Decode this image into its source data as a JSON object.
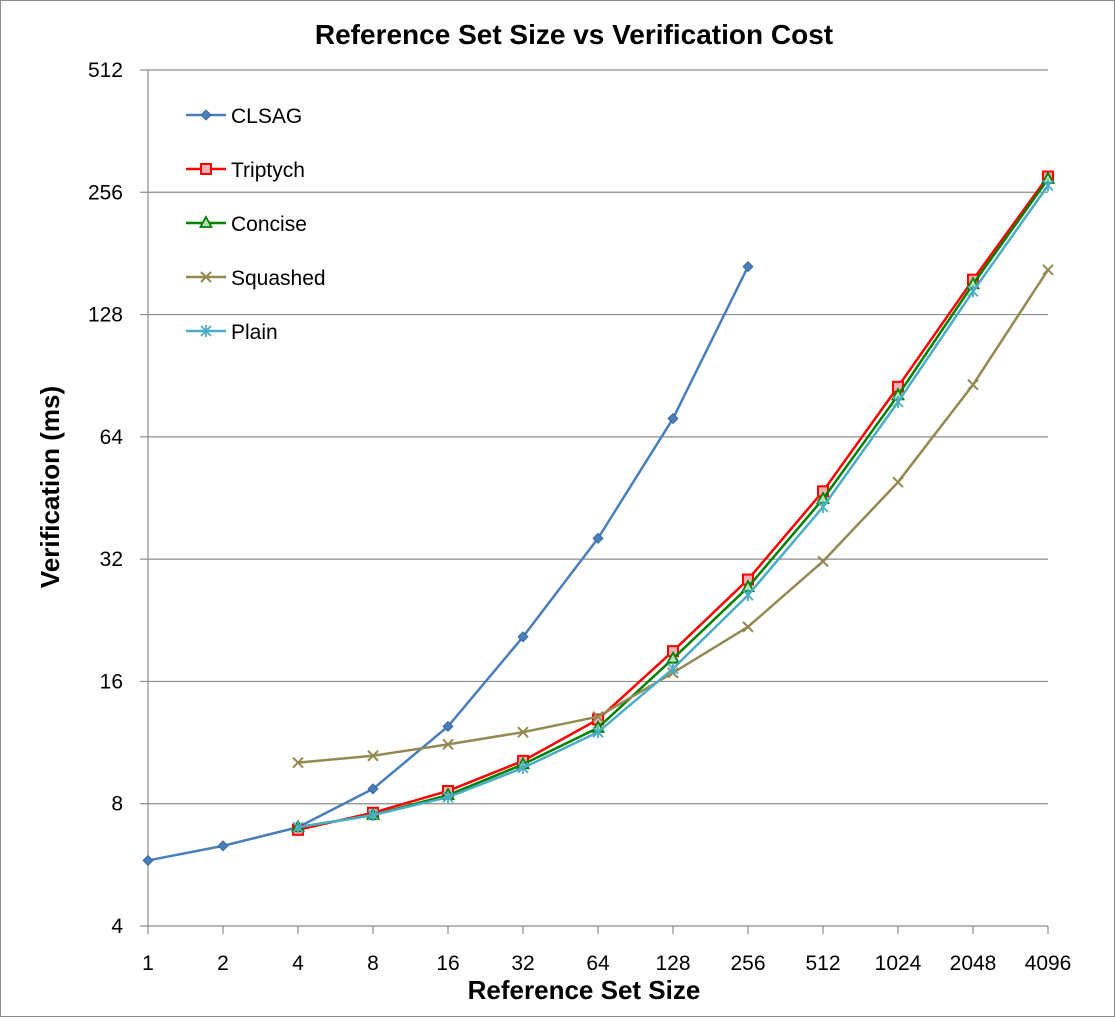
{
  "chart_data": {
    "type": "line",
    "title": "Reference Set Size vs Verification Cost",
    "xlabel": "Reference Set Size",
    "ylabel": "Verification (ms)",
    "x_scale": "log2",
    "y_scale": "log2",
    "categories": [
      "1",
      "2",
      "4",
      "8",
      "16",
      "32",
      "64",
      "128",
      "256",
      "512",
      "1024",
      "2048",
      "4096"
    ],
    "x": [
      1,
      2,
      4,
      8,
      16,
      32,
      64,
      128,
      256,
      512,
      1024,
      2048,
      4096
    ],
    "y_ticks": [
      "4",
      "8",
      "16",
      "32",
      "64",
      "128",
      "256",
      "512"
    ],
    "ylim": [
      4,
      512
    ],
    "grid": "horizontal major",
    "legend_position": "top-left",
    "series": [
      {
        "name": "CLSAG",
        "color": "#4a7ebb",
        "marker": "diamond",
        "values": [
          5.8,
          6.3,
          7.0,
          8.7,
          12.4,
          20.6,
          36.0,
          71.0,
          168.0,
          null,
          null,
          null,
          null
        ]
      },
      {
        "name": "Triptych",
        "color": "#ff0000",
        "marker": "square",
        "values": [
          null,
          null,
          6.9,
          7.6,
          8.6,
          10.2,
          12.9,
          19.0,
          28.5,
          47.0,
          85.0,
          156.0,
          280.0
        ]
      },
      {
        "name": "Concise",
        "color": "#008000",
        "marker": "triangle",
        "values": [
          null,
          null,
          7.0,
          7.5,
          8.4,
          10.0,
          12.3,
          18.2,
          27.3,
          45.0,
          81.0,
          152.0,
          276.0
        ]
      },
      {
        "name": "Squashed",
        "color": "#938953",
        "marker": "x",
        "values": [
          null,
          null,
          10.1,
          10.5,
          11.2,
          12.0,
          13.1,
          16.8,
          21.8,
          31.6,
          49.5,
          86.0,
          165.0
        ]
      },
      {
        "name": "Plain",
        "color": "#4bacc6",
        "marker": "asterisk",
        "values": [
          null,
          null,
          7.0,
          7.5,
          8.3,
          9.8,
          12.0,
          17.2,
          26.1,
          43.0,
          78.0,
          146.0,
          266.0
        ]
      }
    ]
  }
}
